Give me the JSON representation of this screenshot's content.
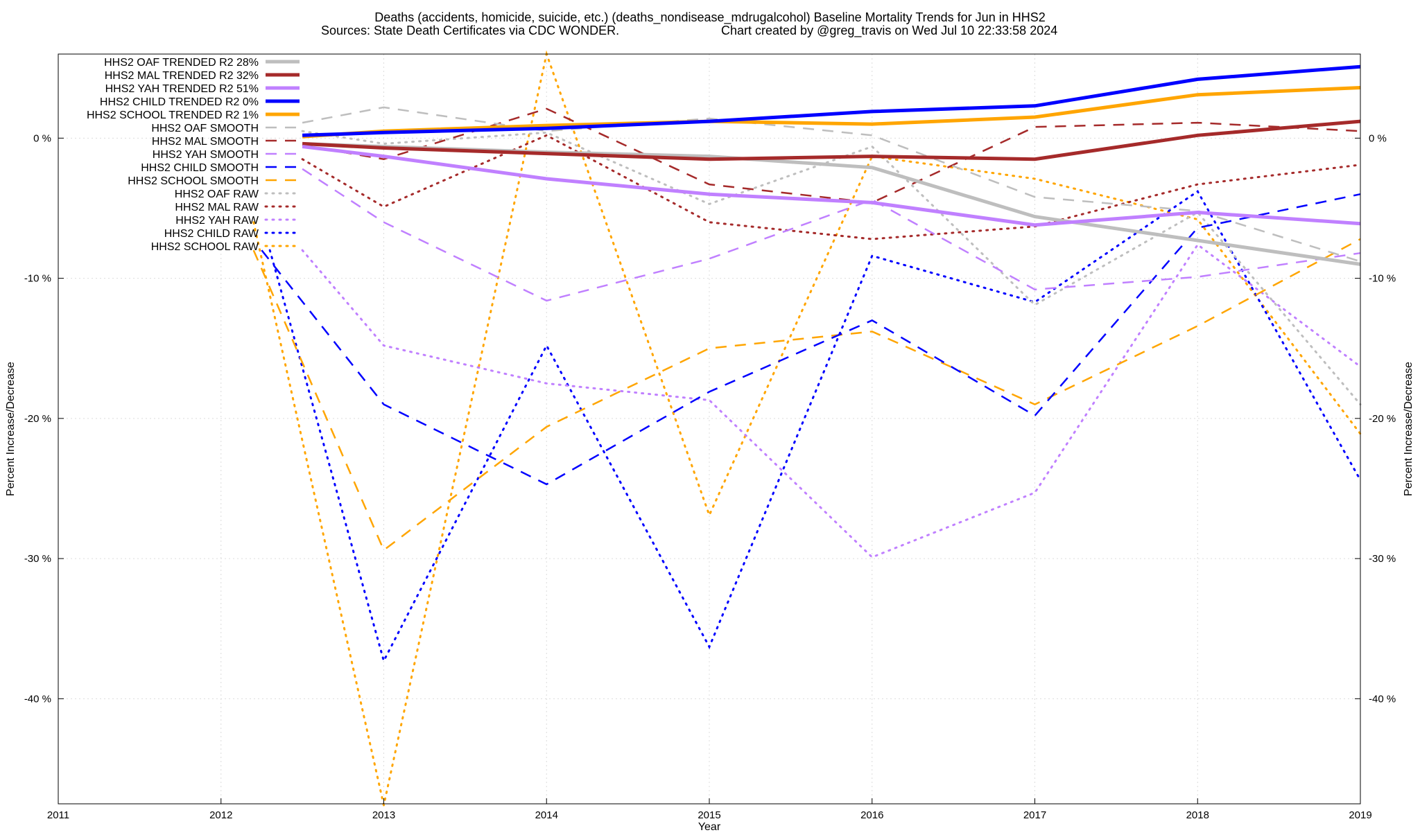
{
  "chart_data": {
    "type": "line",
    "title": "Deaths (accidents, homicide, suicide, etc.) (deaths_nondisease_mdrugalcohol)  Baseline Mortality Trends for Jun in HHS2",
    "subtitle_left": "Sources: State Death Certificates via CDC WONDER.",
    "subtitle_right": "Chart created by @greg_travis on Wed Jul 10 22:33:58 2024",
    "xlabel": "Year",
    "ylabel": "Percent Increase/Decrease",
    "y2label": "Percent Increase/Decrease",
    "xlim": [
      2011,
      2019
    ],
    "ylim": [
      -47.5,
      6
    ],
    "x_ticks": [
      "2011",
      "2012",
      "2013",
      "2014",
      "2015",
      "2016",
      "2017",
      "2018",
      "2019"
    ],
    "y_ticks": [
      {
        "value": 0,
        "label": "0 %"
      },
      {
        "value": -10,
        "label": "-10 %"
      },
      {
        "value": -20,
        "label": "-20 %"
      },
      {
        "value": -30,
        "label": "-30 %"
      },
      {
        "value": -40,
        "label": "-40 %"
      }
    ],
    "grid": true,
    "legend_position": "top-left",
    "series": [
      {
        "name": "HHS2 OAF TRENDED R2  28%",
        "style": "trend",
        "color": "#bebebe",
        "x": [
          2012.5,
          2013,
          2014,
          2015,
          2016,
          2017,
          2018,
          2019
        ],
        "y": [
          -0.4,
          -0.6,
          -1.0,
          -1.3,
          -2.1,
          -5.6,
          -7.3,
          -9.0
        ]
      },
      {
        "name": "HHS2 MAL TRENDED R2  32%",
        "style": "trend",
        "color": "#a52a2a",
        "x": [
          2012.5,
          2013,
          2014,
          2015,
          2016,
          2017,
          2018,
          2019
        ],
        "y": [
          -0.4,
          -0.7,
          -1.1,
          -1.5,
          -1.3,
          -1.5,
          0.2,
          1.2
        ]
      },
      {
        "name": "HHS2 YAH TRENDED R2  51%",
        "style": "trend",
        "color": "#c080ff",
        "x": [
          2012.5,
          2013,
          2014,
          2015,
          2016,
          2017,
          2018,
          2019
        ],
        "y": [
          -0.6,
          -1.3,
          -2.9,
          -4.0,
          -4.6,
          -6.2,
          -5.3,
          -6.1
        ]
      },
      {
        "name": "HHS2 CHILD TRENDED R2   0%",
        "style": "trend",
        "color": "#0000ff",
        "x": [
          2012.5,
          2013,
          2014,
          2015,
          2016,
          2017,
          2018,
          2019
        ],
        "y": [
          0.2,
          0.4,
          0.7,
          1.2,
          1.9,
          2.3,
          4.2,
          5.1
        ]
      },
      {
        "name": "HHS2 SCHOOL TRENDED R2   1%",
        "style": "trend",
        "color": "#ffa500",
        "x": [
          2012.5,
          2013,
          2014,
          2015,
          2016,
          2017,
          2018,
          2019
        ],
        "y": [
          0.1,
          0.5,
          0.9,
          1.2,
          1.0,
          1.5,
          3.1,
          3.6
        ]
      },
      {
        "name": "HHS2 OAF SMOOTH",
        "style": "smooth",
        "color": "#bebebe",
        "x": [
          2012.5,
          2013,
          2014,
          2015,
          2016,
          2017,
          2018,
          2019
        ],
        "y": [
          1.1,
          2.2,
          0.5,
          1.4,
          0.2,
          -4.2,
          -5.2,
          -8.8
        ]
      },
      {
        "name": "HHS2 MAL SMOOTH",
        "style": "smooth",
        "color": "#a52a2a",
        "x": [
          2012.5,
          2013,
          2014,
          2015,
          2016,
          2017,
          2018,
          2019
        ],
        "y": [
          -0.5,
          -1.5,
          2.1,
          -3.3,
          -4.6,
          0.8,
          1.1,
          0.5
        ]
      },
      {
        "name": "HHS2 YAH SMOOTH",
        "style": "smooth",
        "color": "#c080ff",
        "x": [
          2012.5,
          2013,
          2014,
          2015,
          2016,
          2017,
          2018,
          2019
        ],
        "y": [
          -2.2,
          -6.0,
          -11.6,
          -8.6,
          -4.4,
          -10.8,
          -9.9,
          -8.2
        ]
      },
      {
        "name": "HHS2 CHILD SMOOTH",
        "style": "smooth",
        "color": "#0000ff",
        "x": [
          2012.25,
          2013,
          2014,
          2015,
          2016,
          2017,
          2018,
          2019
        ],
        "y": [
          -8.0,
          -19.0,
          -24.7,
          -18.1,
          -13.0,
          -19.8,
          -6.4,
          -4.0
        ]
      },
      {
        "name": "HHS2 SCHOOL SMOOTH",
        "style": "smooth",
        "color": "#ffa500",
        "x": [
          2012.2,
          2013,
          2014,
          2015,
          2016,
          2017,
          2018,
          2019
        ],
        "y": [
          -8.0,
          -29.4,
          -20.6,
          -15.0,
          -13.8,
          -19.0,
          -13.4,
          -7.2
        ]
      },
      {
        "name": "HHS2 OAF RAW",
        "style": "raw",
        "color": "#bebebe",
        "x": [
          2012.5,
          2013,
          2014,
          2015,
          2016,
          2017,
          2018,
          2019
        ],
        "y": [
          0.5,
          -0.4,
          0.4,
          -4.7,
          -0.6,
          -11.9,
          -5.3,
          -19.0
        ]
      },
      {
        "name": "HHS2 MAL RAW",
        "style": "raw",
        "color": "#a52a2a",
        "x": [
          2012.5,
          2013,
          2014,
          2015,
          2016,
          2017,
          2018,
          2019
        ],
        "y": [
          -1.5,
          -4.9,
          0.2,
          -6.0,
          -7.2,
          -6.3,
          -3.3,
          -1.9
        ]
      },
      {
        "name": "HHS2 YAH RAW",
        "style": "raw",
        "color": "#c080ff",
        "x": [
          2012.5,
          2013,
          2014,
          2015,
          2016,
          2017,
          2018,
          2019
        ],
        "y": [
          -8.0,
          -14.8,
          -17.5,
          -18.7,
          -29.9,
          -25.3,
          -7.6,
          -16.3
        ]
      },
      {
        "name": "HHS2 CHILD RAW",
        "style": "raw",
        "color": "#0000ff",
        "x": [
          2012.3,
          2013,
          2014,
          2015,
          2016,
          2017,
          2018,
          2019
        ],
        "y": [
          -8.0,
          -37.3,
          -14.8,
          -36.3,
          -8.4,
          -11.7,
          -3.8,
          -24.4
        ]
      },
      {
        "name": "HHS2 SCHOOL RAW",
        "style": "raw",
        "color": "#ffa500",
        "x": [
          2012.2,
          2013,
          2014,
          2015,
          2016,
          2017,
          2018,
          2019
        ],
        "y": [
          -6.0,
          -47.6,
          6.0,
          -26.9,
          -1.3,
          -2.9,
          -5.8,
          -21.1
        ]
      }
    ]
  }
}
